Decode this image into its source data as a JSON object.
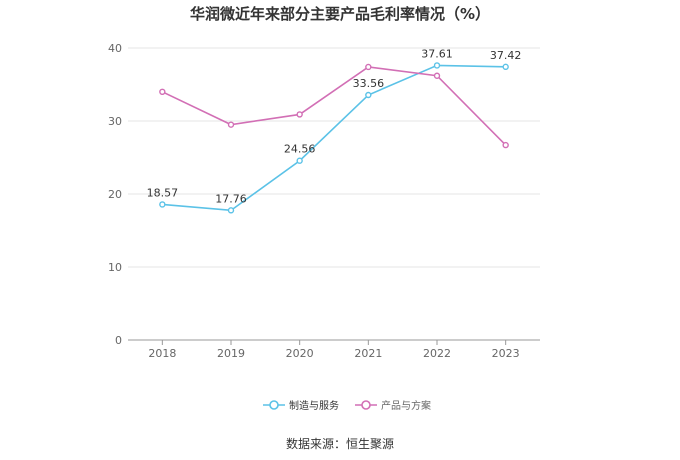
{
  "chart_data": {
    "type": "line",
    "title": "华润微近年来部分主要产品毛利率情况（%）",
    "x": [
      "2018",
      "2019",
      "2020",
      "2021",
      "2022",
      "2023"
    ],
    "ylim": [
      0,
      40
    ],
    "yticks": [
      0,
      10,
      20,
      30,
      40
    ],
    "grid": true,
    "legend_position": "bottom",
    "series": [
      {
        "name": "制造与服务",
        "color": "#5bc2e7",
        "values": [
          18.57,
          17.76,
          24.56,
          33.56,
          37.61,
          37.42
        ],
        "labels": [
          "18.57",
          "17.76",
          "24.56",
          "33.56",
          "37.61",
          "37.42"
        ]
      },
      {
        "name": "产品与方案",
        "color": "#d26fb5",
        "values": [
          34.0,
          29.5,
          30.9,
          37.4,
          36.2,
          26.7
        ]
      }
    ]
  },
  "source": "数据来源：恒生聚源"
}
